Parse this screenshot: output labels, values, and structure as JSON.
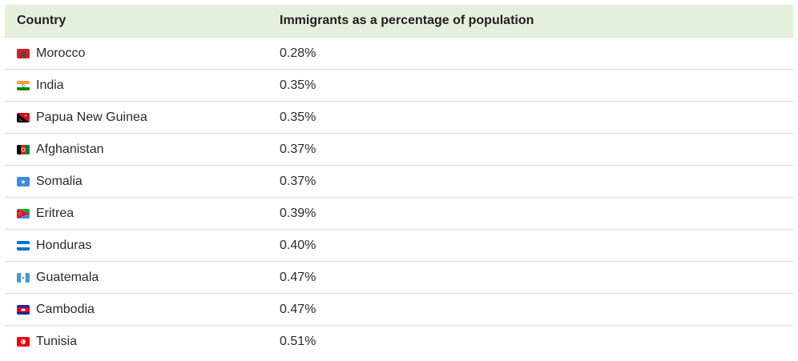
{
  "table": {
    "headers": [
      "Country",
      "Immigrants as a percentage of population"
    ],
    "rows": [
      {
        "country": "Morocco",
        "value": "0.28%",
        "flag_icon": "morocco-flag-icon"
      },
      {
        "country": "India",
        "value": "0.35%",
        "flag_icon": "india-flag-icon"
      },
      {
        "country": "Papua New Guinea",
        "value": "0.35%",
        "flag_icon": "papua-new-guinea-flag-icon"
      },
      {
        "country": "Afghanistan",
        "value": "0.37%",
        "flag_icon": "afghanistan-flag-icon"
      },
      {
        "country": "Somalia",
        "value": "0.37%",
        "flag_icon": "somalia-flag-icon"
      },
      {
        "country": "Eritrea",
        "value": "0.39%",
        "flag_icon": "eritrea-flag-icon"
      },
      {
        "country": "Honduras",
        "value": "0.40%",
        "flag_icon": "honduras-flag-icon"
      },
      {
        "country": "Guatemala",
        "value": "0.47%",
        "flag_icon": "guatemala-flag-icon"
      },
      {
        "country": "Cambodia",
        "value": "0.47%",
        "flag_icon": "cambodia-flag-icon"
      },
      {
        "country": "Tunisia",
        "value": "0.51%",
        "flag_icon": "tunisia-flag-icon"
      }
    ]
  },
  "colors": {
    "header_background": "#e5f0dc",
    "row_divider": "#dcdcdc"
  }
}
